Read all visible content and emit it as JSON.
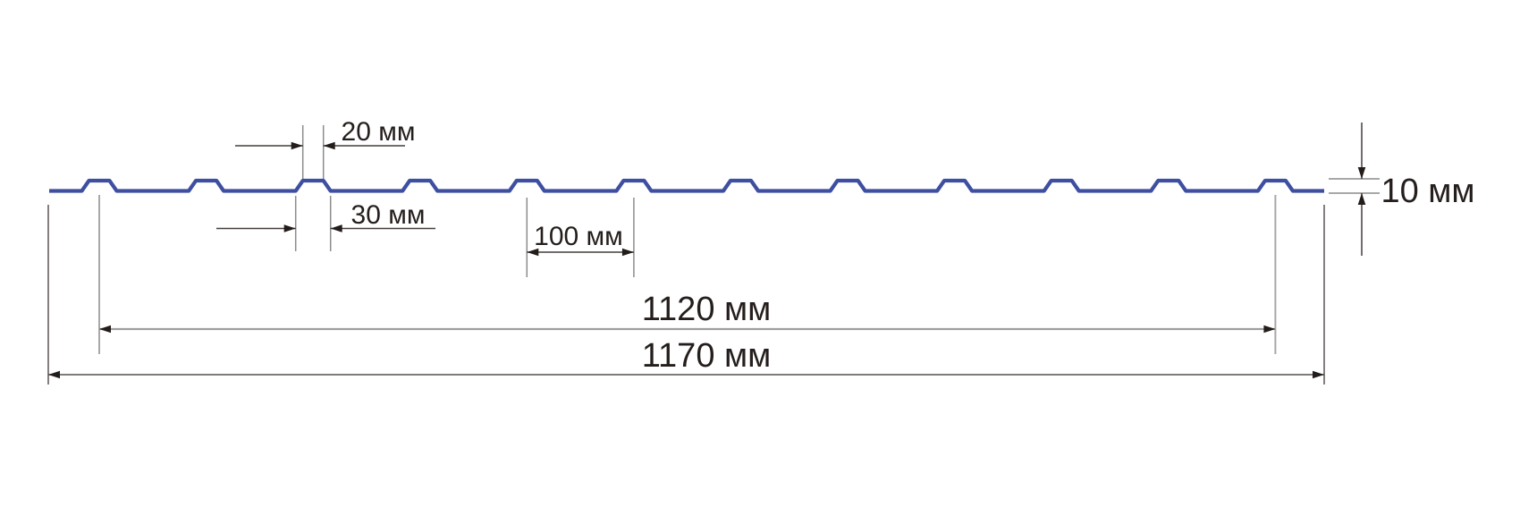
{
  "diagram": {
    "kind": "corrugated-sheet-profile-cross-section",
    "unit": "мм",
    "labels": {
      "rib_top_width": "20 мм",
      "rib_bottom_width": "30 мм",
      "rib_pitch": "100 мм",
      "working_width": "1120 мм",
      "overall_width": "1170 мм",
      "profile_height": "10 мм"
    },
    "values_mm": {
      "rib_top_width": 20,
      "rib_bottom_width": 30,
      "rib_pitch": 100,
      "working_width": 1120,
      "overall_width": 1170,
      "profile_height": 10
    },
    "rib_count": 12,
    "colors": {
      "profile": "#3e4fa1",
      "dimension_line": "#443e3b",
      "dimension_line_light": "#9e9e9e",
      "dimension_line_dark": "#55504d",
      "extension_line": "#8c8c8c",
      "extension_line_light": "#a8a8a8",
      "extension_line_dark": "#5c5755",
      "arrowhead": "#221c1a",
      "label_text": "#241e1c",
      "background": "#ffffff"
    }
  }
}
